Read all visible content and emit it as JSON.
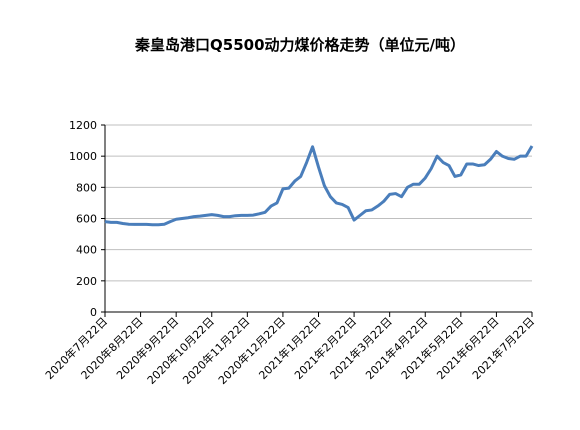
{
  "chart_data": {
    "type": "line",
    "title": "秦皇岛港口Q5500动力煤价格走势（单位元/吨）",
    "categories": [
      "2020年7月22日",
      null,
      null,
      null,
      null,
      null,
      "2020年8月22日",
      null,
      null,
      null,
      null,
      null,
      "2020年9月22日",
      null,
      null,
      null,
      null,
      null,
      "2020年10月22日",
      null,
      null,
      null,
      null,
      null,
      "2020年11月22日",
      null,
      null,
      null,
      null,
      null,
      "2020年12月22日",
      null,
      null,
      null,
      null,
      null,
      "2021年1月22日",
      null,
      null,
      null,
      null,
      null,
      "2021年2月22日",
      null,
      null,
      null,
      null,
      null,
      "2021年3月22日",
      null,
      null,
      null,
      null,
      null,
      "2021年4月22日",
      null,
      null,
      null,
      null,
      null,
      "2021年5月22日",
      null,
      null,
      null,
      null,
      null,
      "2021年6月22日",
      null,
      null,
      null,
      null,
      null,
      "2021年7月22日"
    ],
    "series": [
      {
        "color": "#4a7ebb",
        "values": [
          580,
          575,
          575,
          568,
          563,
          562,
          562,
          562,
          560,
          560,
          563,
          580,
          595,
          600,
          605,
          612,
          615,
          620,
          625,
          620,
          612,
          612,
          618,
          620,
          620,
          622,
          630,
          640,
          680,
          700,
          790,
          795,
          840,
          870,
          960,
          1060,
          930,
          810,
          740,
          700,
          690,
          670,
          590,
          620,
          650,
          655,
          680,
          710,
          755,
          760,
          740,
          800,
          820,
          820,
          860,
          920,
          1000,
          960,
          940,
          870,
          880,
          950,
          950,
          940,
          945,
          980,
          1030,
          1000,
          985,
          980,
          1000,
          1000,
          1065
        ]
      }
    ],
    "ylim": [
      0,
      1200
    ],
    "yticks": [
      0,
      200,
      400,
      600,
      800,
      1000,
      1200
    ],
    "grid": true
  }
}
